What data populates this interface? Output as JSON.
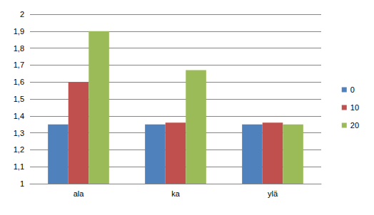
{
  "chart_data": {
    "type": "bar",
    "categories": [
      "ala",
      "ka",
      "ylä"
    ],
    "series": [
      {
        "name": "0",
        "color": "#4f81bd",
        "values": [
          1.35,
          1.35,
          1.35
        ]
      },
      {
        "name": "10",
        "color": "#c0504d",
        "values": [
          1.6,
          1.36,
          1.36
        ]
      },
      {
        "name": "20",
        "color": "#9bbb59",
        "values": [
          1.9,
          1.67,
          1.35
        ]
      }
    ],
    "ylim": [
      1,
      2
    ],
    "yticks": [
      1,
      {
        "value": 1.1,
        "label": "1,1"
      },
      {
        "value": 1.2,
        "label": "1,2"
      },
      {
        "value": 1.3,
        "label": "1,3"
      },
      {
        "value": 1.4,
        "label": "1,4"
      },
      {
        "value": 1.5,
        "label": "1,5"
      },
      {
        "value": 1.6,
        "label": "1,6"
      },
      {
        "value": 1.7,
        "label": "1,7"
      },
      {
        "value": 1.8,
        "label": "1,8"
      },
      {
        "value": 1.9,
        "label": "1,9"
      },
      2
    ],
    "grid": true,
    "legend": "right"
  }
}
